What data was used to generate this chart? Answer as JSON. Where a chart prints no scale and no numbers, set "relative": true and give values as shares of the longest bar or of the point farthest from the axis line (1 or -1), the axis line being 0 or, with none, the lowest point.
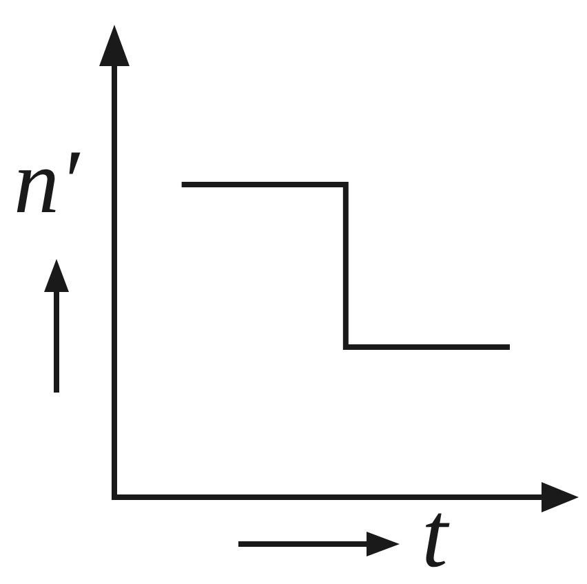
{
  "chart_data": {
    "type": "step",
    "xlabel": "t",
    "ylabel": "n′",
    "categories": [
      null,
      null,
      null
    ],
    "relative": true,
    "tick_labels": false,
    "series": [
      {
        "color": "#1a1a1a",
        "values": [
          1,
          0.48,
          0.48
        ]
      }
    ]
  }
}
